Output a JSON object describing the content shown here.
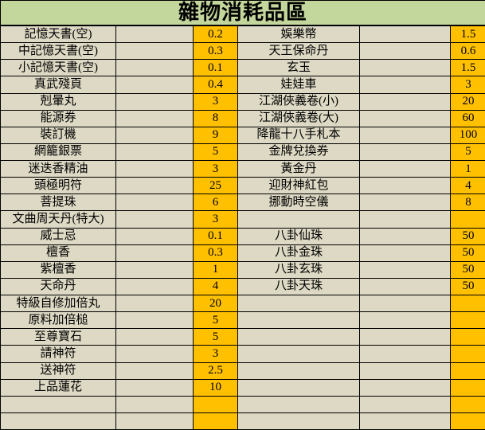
{
  "title": "雜物消耗品區",
  "colors": {
    "title_bg": "#c3d69b",
    "cell_bg": "#ddd9c4",
    "value_bg": "#ffc000",
    "grid": "#000000",
    "text": "#000000"
  },
  "table": {
    "left": [
      {
        "name": "記憶天書(空)",
        "value": "0.2"
      },
      {
        "name": "中記憶天書(空)",
        "value": "0.3"
      },
      {
        "name": "小記憶天書(空)",
        "value": "0.1"
      },
      {
        "name": "真武殘頁",
        "value": "0.4"
      },
      {
        "name": "剋暈丸",
        "value": "3"
      },
      {
        "name": "能源券",
        "value": "8"
      },
      {
        "name": "裝訂機",
        "value": "9"
      },
      {
        "name": "網籠銀票",
        "value": "5"
      },
      {
        "name": "迷迭香精油",
        "value": "3"
      },
      {
        "name": "頭極明符",
        "value": "25"
      },
      {
        "name": "菩提珠",
        "value": "6"
      },
      {
        "name": "文曲周天丹(特大)",
        "value": "3"
      },
      {
        "name": "威士忌",
        "value": "0.1"
      },
      {
        "name": "檀香",
        "value": "0.3"
      },
      {
        "name": "紫檀香",
        "value": "1"
      },
      {
        "name": "天命丹",
        "value": "4"
      },
      {
        "name": "特級自修加倍丸",
        "value": "20"
      },
      {
        "name": "原料加倍槌",
        "value": "5"
      },
      {
        "name": "至尊寶石",
        "value": "5"
      },
      {
        "name": "請神符",
        "value": "3"
      },
      {
        "name": "送神符",
        "value": "2.5"
      },
      {
        "name": "上品蓮花",
        "value": "10"
      },
      {
        "name": "",
        "value": ""
      },
      {
        "name": "",
        "value": ""
      }
    ],
    "right": [
      {
        "name": "娛樂幣",
        "value": "1.5"
      },
      {
        "name": "天王保命丹",
        "value": "0.6"
      },
      {
        "name": "玄玉",
        "value": "1.5"
      },
      {
        "name": "娃娃車",
        "value": "3"
      },
      {
        "name": "江湖俠義卷(小)",
        "value": "20"
      },
      {
        "name": "江湖俠義卷(大)",
        "value": "60"
      },
      {
        "name": "降龍十八手札本",
        "value": "100"
      },
      {
        "name": "金牌兌換券",
        "value": "5"
      },
      {
        "name": "黃金丹",
        "value": "1"
      },
      {
        "name": "迎財神紅包",
        "value": "4"
      },
      {
        "name": "挪動時空儀",
        "value": "8"
      },
      {
        "name": "",
        "value": ""
      },
      {
        "name": "八卦仙珠",
        "value": "50"
      },
      {
        "name": "八卦金珠",
        "value": "50"
      },
      {
        "name": "八卦玄珠",
        "value": "50"
      },
      {
        "name": "八卦天珠",
        "value": "50"
      },
      {
        "name": "",
        "value": ""
      },
      {
        "name": "",
        "value": ""
      },
      {
        "name": "",
        "value": ""
      },
      {
        "name": "",
        "value": ""
      },
      {
        "name": "",
        "value": ""
      },
      {
        "name": "",
        "value": ""
      },
      {
        "name": "",
        "value": ""
      },
      {
        "name": "",
        "value": ""
      }
    ]
  }
}
